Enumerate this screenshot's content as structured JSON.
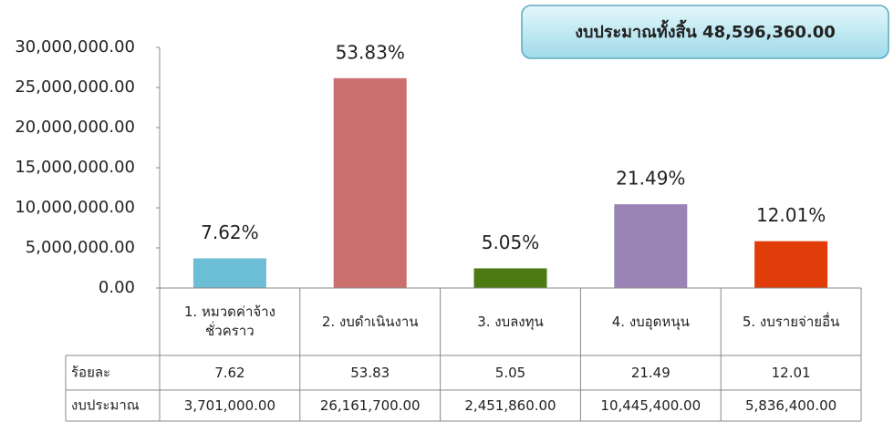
{
  "chart_data": {
    "type": "bar",
    "total_label": "งบประมาณทั้งสิ้น 48,596,360.00",
    "categories": [
      "1. หมวดค่าจ้าง\nชั่วคราว",
      "2. งบดำเนินงาน",
      "3. งบลงทุน",
      "4. งบอุดหนุน",
      "5. งบรายจ่ายอื่น"
    ],
    "values": [
      3701000,
      26161700,
      2451860,
      10445400,
      5836400
    ],
    "value_labels": [
      "3,701,000.00",
      "26,161,700.00",
      "2,451,860.00",
      "10,445,400.00",
      "5,836,400.00"
    ],
    "percentages": [
      7.62,
      53.83,
      5.05,
      21.49,
      12.01
    ],
    "percentage_labels": [
      "7.62%",
      "53.83%",
      "5.05%",
      "21.49%",
      "12.01%"
    ],
    "row_labels": [
      "ร้อยละ",
      "งบประมาณ"
    ],
    "colors": [
      "#6cbdd6",
      "#cc6f6f",
      "#4d7a12",
      "#9a84b6",
      "#e03d0b"
    ],
    "ylim": [
      0,
      30000000
    ],
    "yticks": [
      {
        "value": 0,
        "label": "0.00"
      },
      {
        "value": 5000000,
        "label": "5,000,000.00"
      },
      {
        "value": 10000000,
        "label": "10,000,000.00"
      },
      {
        "value": 15000000,
        "label": "15,000,000.00"
      },
      {
        "value": 20000000,
        "label": "20,000,000.00"
      },
      {
        "value": 25000000,
        "label": "25,000,000.00"
      },
      {
        "value": 30000000,
        "label": "30,000,000.00"
      }
    ]
  }
}
